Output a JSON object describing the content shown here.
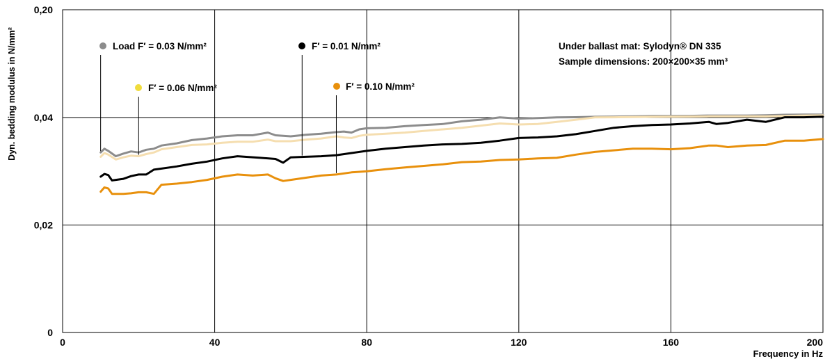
{
  "chart_data": {
    "type": "line",
    "title": "",
    "xlabel": "Frequency in Hz",
    "ylabel": "Dyn. bedding modulus in N/mm²",
    "xlim": [
      0,
      200
    ],
    "ylim": [
      0,
      0.2
    ],
    "grid": true,
    "x_ticks": [
      {
        "value": 0,
        "label": "0"
      },
      {
        "value": 40,
        "label": "40"
      },
      {
        "value": 80,
        "label": "80"
      },
      {
        "value": 120,
        "label": "120"
      },
      {
        "value": 160,
        "label": "160"
      },
      {
        "value": 200,
        "label": "200"
      }
    ],
    "y_ticks": [
      {
        "value": 0,
        "label": "0"
      },
      {
        "value": 0.02,
        "label": "0,02"
      },
      {
        "value": 0.04,
        "label": "0,04"
      },
      {
        "value": 0.2,
        "label": "0,20"
      }
    ],
    "annotation": {
      "line1": "Under ballast mat: Sylodyn® DN 335",
      "line2": "Sample dimensions: 200×200×35 mm³"
    },
    "series": [
      {
        "name": "Load F′ = 0.03 N/mm²",
        "color": "#8c8c8c",
        "x": [
          10,
          11,
          12,
          14,
          16,
          18,
          20,
          22,
          24,
          26,
          30,
          34,
          38,
          42,
          46,
          50,
          54,
          56,
          60,
          64,
          68,
          72,
          74,
          76,
          78,
          80,
          85,
          90,
          95,
          100,
          105,
          110,
          115,
          120,
          125,
          130,
          135,
          140,
          145,
          150,
          155,
          160,
          165,
          170,
          175,
          180,
          185,
          190,
          195,
          200
        ],
        "y": [
          0.0335,
          0.0342,
          0.0338,
          0.0328,
          0.0333,
          0.0337,
          0.0335,
          0.034,
          0.0342,
          0.0348,
          0.0352,
          0.0358,
          0.0361,
          0.0365,
          0.0367,
          0.0367,
          0.0372,
          0.0367,
          0.0365,
          0.0368,
          0.037,
          0.0373,
          0.0374,
          0.0372,
          0.0378,
          0.038,
          0.0381,
          0.0384,
          0.0386,
          0.0388,
          0.0393,
          0.0396,
          0.0402,
          0.0398,
          0.0399,
          0.0403,
          0.0405,
          0.0411,
          0.0414,
          0.0418,
          0.0423,
          0.0423,
          0.0425,
          0.043,
          0.043,
          0.043,
          0.0433,
          0.0441,
          0.0444,
          0.0444
        ]
      },
      {
        "name": "F′ = 0.06 N/mm²",
        "color": "#f5deb0",
        "x": [
          10,
          11,
          12,
          14,
          16,
          18,
          20,
          22,
          24,
          26,
          30,
          34,
          38,
          42,
          46,
          50,
          54,
          56,
          60,
          64,
          68,
          72,
          74,
          76,
          78,
          80,
          85,
          90,
          95,
          100,
          105,
          110,
          115,
          120,
          125,
          130,
          135,
          140,
          145,
          150,
          155,
          160,
          165,
          170,
          175,
          180,
          185,
          190,
          195,
          200
        ],
        "y": [
          0.0327,
          0.0334,
          0.0331,
          0.0322,
          0.0326,
          0.0329,
          0.0328,
          0.0332,
          0.0335,
          0.0341,
          0.0345,
          0.0349,
          0.035,
          0.0353,
          0.0355,
          0.0355,
          0.0359,
          0.0356,
          0.0356,
          0.0359,
          0.0361,
          0.0365,
          0.0363,
          0.0362,
          0.0366,
          0.0368,
          0.037,
          0.0372,
          0.0375,
          0.0378,
          0.0381,
          0.0385,
          0.0389,
          0.0387,
          0.0388,
          0.0392,
          0.0396,
          0.0402,
          0.0404,
          0.0407,
          0.0411,
          0.0412,
          0.0414,
          0.0418,
          0.0419,
          0.0419,
          0.0416,
          0.0425,
          0.043,
          0.0432
        ]
      },
      {
        "name": "F′ = 0.01 N/mm²",
        "color": "#000000",
        "x": [
          10,
          11,
          12,
          13,
          14,
          16,
          18,
          20,
          22,
          24,
          26,
          30,
          34,
          38,
          42,
          46,
          48,
          52,
          56,
          58,
          60,
          64,
          68,
          72,
          76,
          80,
          85,
          90,
          95,
          100,
          105,
          110,
          115,
          120,
          125,
          130,
          135,
          140,
          145,
          150,
          155,
          160,
          165,
          170,
          172,
          175,
          180,
          185,
          190,
          195,
          200
        ],
        "y": [
          0.029,
          0.0295,
          0.0293,
          0.0283,
          0.0284,
          0.0286,
          0.0291,
          0.0294,
          0.0294,
          0.0303,
          0.0305,
          0.0309,
          0.0314,
          0.0318,
          0.0324,
          0.0328,
          0.0327,
          0.0325,
          0.0323,
          0.0316,
          0.0326,
          0.0327,
          0.0328,
          0.033,
          0.0334,
          0.0338,
          0.0342,
          0.0345,
          0.0348,
          0.035,
          0.0351,
          0.0353,
          0.0357,
          0.0362,
          0.0363,
          0.0365,
          0.0369,
          0.0375,
          0.0381,
          0.0384,
          0.0386,
          0.0387,
          0.0389,
          0.0392,
          0.0388,
          0.039,
          0.0396,
          0.0392,
          0.0404,
          0.0404,
          0.0413
        ]
      },
      {
        "name": "F′ = 0.10 N/mm²",
        "color": "#e8900c",
        "x": [
          10,
          11,
          12,
          13,
          14,
          16,
          18,
          20,
          22,
          24,
          26,
          30,
          34,
          38,
          42,
          46,
          50,
          54,
          56,
          58,
          60,
          64,
          68,
          72,
          76,
          80,
          85,
          90,
          95,
          100,
          105,
          110,
          115,
          120,
          125,
          130,
          135,
          140,
          145,
          150,
          155,
          160,
          165,
          170,
          172,
          175,
          180,
          185,
          190,
          195,
          200
        ],
        "y": [
          0.0262,
          0.027,
          0.0268,
          0.0258,
          0.0258,
          0.0258,
          0.0259,
          0.0261,
          0.0261,
          0.0258,
          0.0275,
          0.0277,
          0.028,
          0.0284,
          0.029,
          0.0294,
          0.0292,
          0.0294,
          0.0287,
          0.0282,
          0.0284,
          0.0288,
          0.0292,
          0.0294,
          0.0298,
          0.03,
          0.0304,
          0.0307,
          0.031,
          0.0313,
          0.0317,
          0.0318,
          0.0321,
          0.0322,
          0.0324,
          0.0325,
          0.0331,
          0.0336,
          0.0339,
          0.0342,
          0.0342,
          0.0341,
          0.0343,
          0.0348,
          0.0348,
          0.0345,
          0.0348,
          0.0349,
          0.0357,
          0.0357,
          0.036
        ]
      }
    ],
    "legend": [
      {
        "label": "Load F′ = 0.03 N/mm²",
        "color": "#8c8c8c",
        "pointer_x": 10
      },
      {
        "label": "F′ = 0.01 N/mm²",
        "color": "#000000",
        "pointer_x": 63
      },
      {
        "label": "F′ = 0.06 N/mm²",
        "color": "#f0dc3c",
        "pointer_x": 20
      },
      {
        "label": "F′ = 0.10 N/mm²",
        "color": "#e8900c",
        "pointer_x": 72
      }
    ]
  }
}
